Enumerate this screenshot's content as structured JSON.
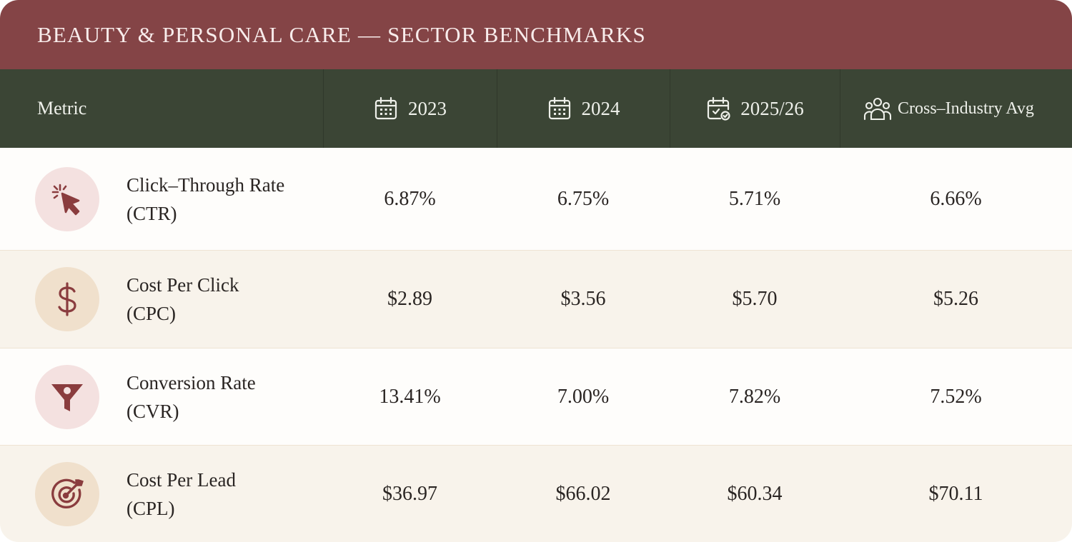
{
  "title": "BEAUTY & PERSONAL CARE — SECTOR BENCHMARKS",
  "colors": {
    "title_bar": "#844446",
    "header_bar": "#3b4535",
    "accent_icon": "#8a3c3e",
    "row_alt": "#f8f3eb"
  },
  "header": {
    "metric": "Metric",
    "col_2023": "2023",
    "col_2024": "2024",
    "col_2025": "2025/26",
    "col_cross": "Cross–Industry Avg",
    "icons": [
      "calendar-icon",
      "calendar-icon",
      "calendar-check-icon",
      "users-group-icon"
    ]
  },
  "rows": [
    {
      "name_line1": "Click–Through Rate",
      "name_line2": "(CTR)",
      "icon": "cursor-click-icon",
      "v2023": "6.87%",
      "v2024": "6.75%",
      "v2025": "5.71%",
      "cross": "6.66%"
    },
    {
      "name_line1": "Cost Per Click",
      "name_line2": "(CPC)",
      "icon": "dollar-icon",
      "v2023": "$2.89",
      "v2024": "$3.56",
      "v2025": "$5.70",
      "cross": "$5.26"
    },
    {
      "name_line1": "Conversion Rate",
      "name_line2": "(CVR)",
      "icon": "funnel-icon",
      "v2023": "13.41%",
      "v2024": "7.00%",
      "v2025": "7.82%",
      "cross": "7.52%"
    },
    {
      "name_line1": "Cost Per Lead",
      "name_line2": "(CPL)",
      "icon": "target-icon",
      "v2023": "$36.97",
      "v2024": "$66.02",
      "v2025": "$60.34",
      "cross": "$70.11"
    }
  ]
}
